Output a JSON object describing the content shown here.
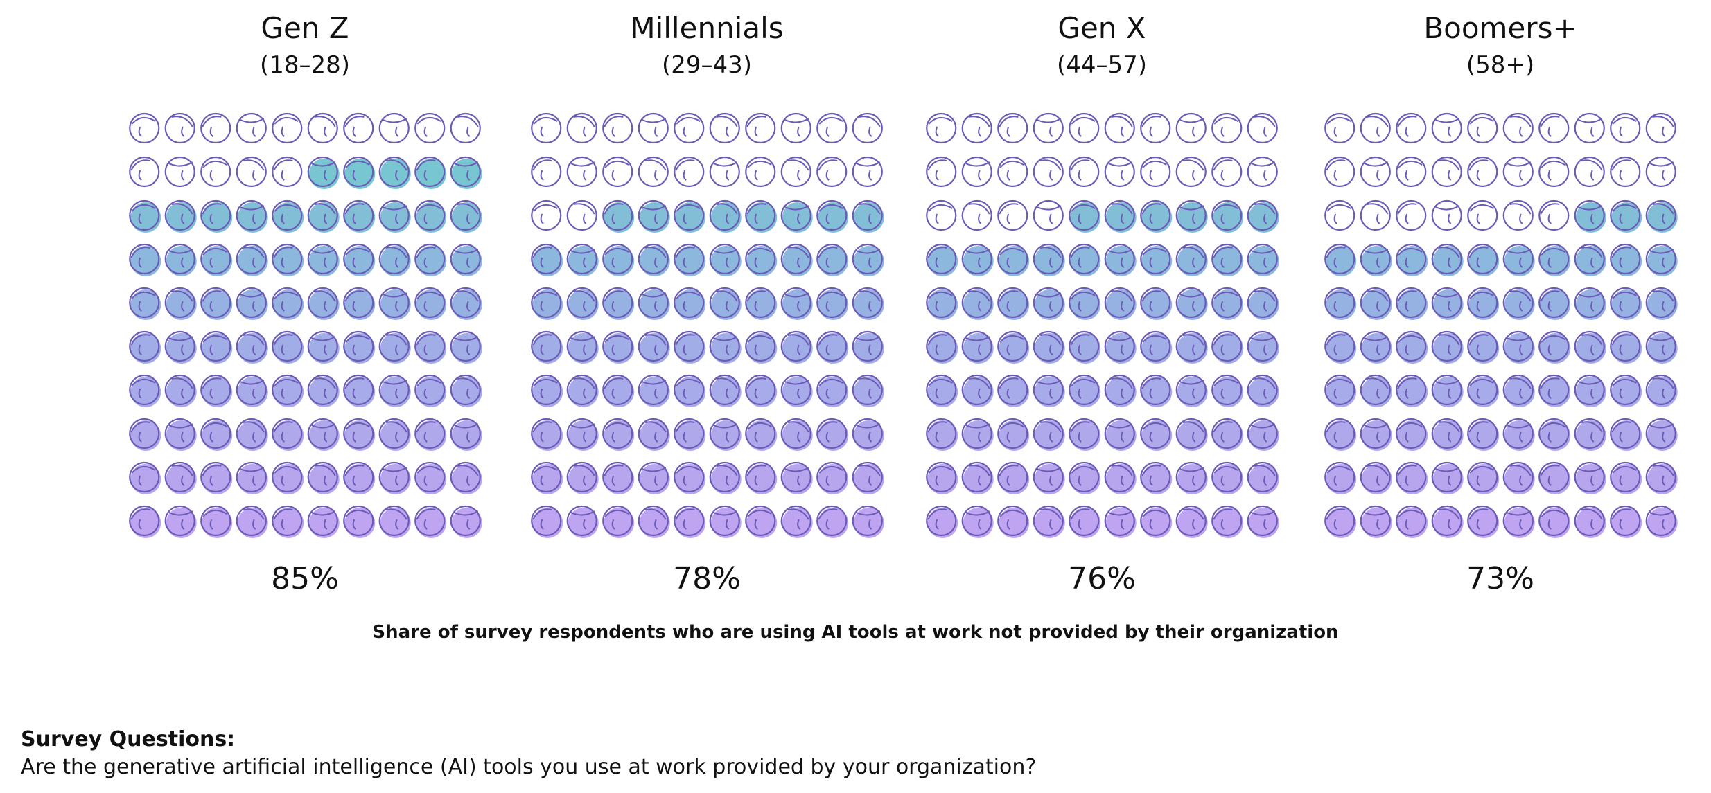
{
  "chart_data": {
    "type": "pictogram",
    "title": "Share of survey respondents who are using AI tools at work not provided by their organization",
    "units": "%",
    "icons_per_group": 100,
    "groups": [
      {
        "name": "Gen Z",
        "range": "(18–28)",
        "value": 85,
        "label": "85%"
      },
      {
        "name": "Millennials",
        "range": "(29–43)",
        "value": 78,
        "label": "78%"
      },
      {
        "name": "Gen X",
        "range": "(44–57)",
        "value": 76,
        "label": "76%"
      },
      {
        "name": "Boomers+",
        "range": "(58+)",
        "value": 73,
        "label": "73%"
      }
    ]
  },
  "colors": {
    "outline": "#6b5bb7",
    "fill_top": "#54c4c4",
    "fill_mid": "#8aa0e0",
    "fill_bottom": "#b394ee"
  },
  "caption": "Share of survey respondents who are using AI tools at work not provided by their organization",
  "survey": {
    "title": "Survey Questions:",
    "question": "Are the generative artificial intelligence (AI) tools you use at work provided by your organization?"
  }
}
